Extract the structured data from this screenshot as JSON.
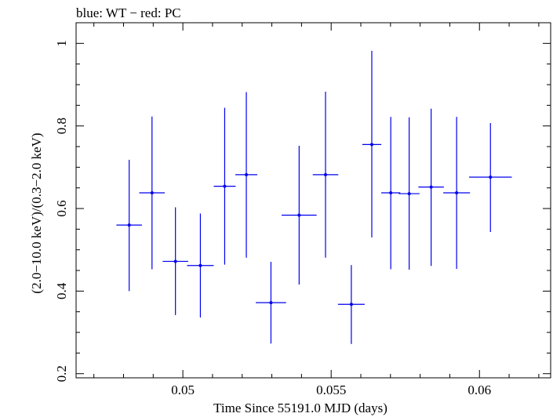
{
  "chart_data": {
    "type": "scatter",
    "title": "blue: WT − red: PC",
    "xlabel": "Time Since 55191.0 MJD (days)",
    "ylabel": "(2.0−10.0 keV)/(0.3−2.0 keV)",
    "xlim": [
      0.0464,
      0.0624
    ],
    "ylim": [
      0.19,
      1.05
    ],
    "x_ticks": [
      {
        "value": 0.05,
        "label": "0.05"
      },
      {
        "value": 0.055,
        "label": "0.055"
      },
      {
        "value": 0.06,
        "label": "0.06"
      }
    ],
    "y_ticks": [
      {
        "value": 0.2,
        "label": "0.2"
      },
      {
        "value": 0.4,
        "label": "0.4"
      },
      {
        "value": 0.6,
        "label": "0.6"
      },
      {
        "value": 0.8,
        "label": "0.8"
      },
      {
        "value": 1.0,
        "label": "1"
      }
    ],
    "grid": false,
    "series": [
      {
        "color": "#0000ee",
        "points": [
          {
            "x": 0.04819,
            "y": 0.56,
            "xerr": 0.00043,
            "ylo": 0.4,
            "yhi": 0.718
          },
          {
            "x": 0.04896,
            "y": 0.638,
            "xerr": 0.00043,
            "ylo": 0.453,
            "yhi": 0.823
          },
          {
            "x": 0.04975,
            "y": 0.472,
            "xerr": 0.00043,
            "ylo": 0.342,
            "yhi": 0.603
          },
          {
            "x": 0.05059,
            "y": 0.462,
            "xerr": 0.00045,
            "ylo": 0.336,
            "yhi": 0.588
          },
          {
            "x": 0.05141,
            "y": 0.654,
            "xerr": 0.00037,
            "ylo": 0.464,
            "yhi": 0.844
          },
          {
            "x": 0.05214,
            "y": 0.682,
            "xerr": 0.00037,
            "ylo": 0.481,
            "yhi": 0.882
          },
          {
            "x": 0.05297,
            "y": 0.372,
            "xerr": 0.00051,
            "ylo": 0.273,
            "yhi": 0.471
          },
          {
            "x": 0.05392,
            "y": 0.584,
            "xerr": 0.00059,
            "ylo": 0.416,
            "yhi": 0.752
          },
          {
            "x": 0.05481,
            "y": 0.682,
            "xerr": 0.00043,
            "ylo": 0.481,
            "yhi": 0.883
          },
          {
            "x": 0.05568,
            "y": 0.368,
            "xerr": 0.00045,
            "ylo": 0.272,
            "yhi": 0.463
          },
          {
            "x": 0.05637,
            "y": 0.755,
            "xerr": 0.00032,
            "ylo": 0.53,
            "yhi": 0.982
          },
          {
            "x": 0.05701,
            "y": 0.638,
            "xerr": 0.00032,
            "ylo": 0.453,
            "yhi": 0.822
          },
          {
            "x": 0.05763,
            "y": 0.636,
            "xerr": 0.00035,
            "ylo": 0.452,
            "yhi": 0.821
          },
          {
            "x": 0.05837,
            "y": 0.652,
            "xerr": 0.00043,
            "ylo": 0.461,
            "yhi": 0.842
          },
          {
            "x": 0.05923,
            "y": 0.638,
            "xerr": 0.00045,
            "ylo": 0.454,
            "yhi": 0.822
          },
          {
            "x": 0.06037,
            "y": 0.676,
            "xerr": 0.00072,
            "ylo": 0.543,
            "yhi": 0.807
          }
        ]
      }
    ]
  }
}
